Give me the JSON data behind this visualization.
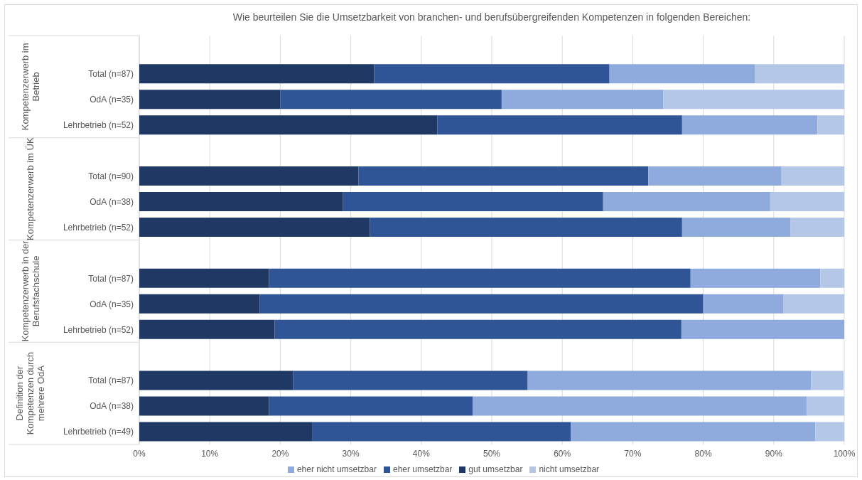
{
  "chart_data": {
    "type": "bar",
    "orientation": "horizontal",
    "stacked": true,
    "title": "Wie beurteilen Sie die Umsetzbarkeit von branchen- und berufsübergreifenden Kompetenzen in folgenden Bereichen:",
    "annotations": [
      "Kompetenzerwerb im Betrieb",
      "Kompetenzerwerb im ÜK",
      "Kompetenzerwerb in der Berufsfachschule",
      "Definition der Kompetenzen durch mehrere OdA"
    ],
    "categories": [
      null,
      "Total (n=87)",
      "OdA (n=35)",
      "Lehrbetrieb (n=52)",
      null,
      "Total (n=90)",
      "OdA (n=38)",
      "Lehrbetrieb (n=52)",
      null,
      "Total (n=87)",
      "OdA (n=35)",
      "Lehrbetrieb (n=52)",
      null,
      "Total (n=87)",
      "OdA (n=38)",
      "Lehrbetrieb (n=49)"
    ],
    "series": [
      {
        "name": "gut umsetzbar",
        "color": "#203864",
        "values": [
          null,
          33.3,
          20.0,
          42.3,
          null,
          31.1,
          28.9,
          32.7,
          null,
          18.4,
          17.1,
          19.2,
          null,
          21.8,
          18.4,
          24.5
        ]
      },
      {
        "name": "eher umsetzbar",
        "color": "#2f5597",
        "values": [
          null,
          33.4,
          31.4,
          34.7,
          null,
          41.1,
          36.9,
          44.3,
          null,
          59.8,
          62.9,
          57.7,
          null,
          33.3,
          28.9,
          36.7
        ]
      },
      {
        "name": "eher nicht umsetzbar",
        "color": "#8faadc",
        "values": [
          null,
          20.6,
          22.9,
          19.2,
          null,
          18.9,
          23.7,
          15.4,
          null,
          18.4,
          11.4,
          23.1,
          null,
          40.2,
          47.4,
          34.7
        ]
      },
      {
        "name": "nicht umsetzbar",
        "color": "#b4c7e7",
        "values": [
          null,
          12.7,
          25.7,
          3.8,
          null,
          8.9,
          10.5,
          7.6,
          null,
          3.4,
          8.6,
          0,
          null,
          4.6,
          5.3,
          4.1
        ]
      }
    ],
    "xlim": [
      0,
      100
    ],
    "xticks": [
      {
        "value": 0,
        "label": "0%"
      },
      {
        "value": 10,
        "label": "10%"
      },
      {
        "value": 20,
        "label": "20%"
      },
      {
        "value": 30,
        "label": "30%"
      },
      {
        "value": 40,
        "label": "40%"
      },
      {
        "value": 50,
        "label": "50%"
      },
      {
        "value": 60,
        "label": "60%"
      },
      {
        "value": 70,
        "label": "70%"
      },
      {
        "value": 80,
        "label": "80%"
      },
      {
        "value": 90,
        "label": "90%"
      },
      {
        "value": 100,
        "label": "100%"
      }
    ],
    "grid": "x",
    "legend": "bottom"
  }
}
